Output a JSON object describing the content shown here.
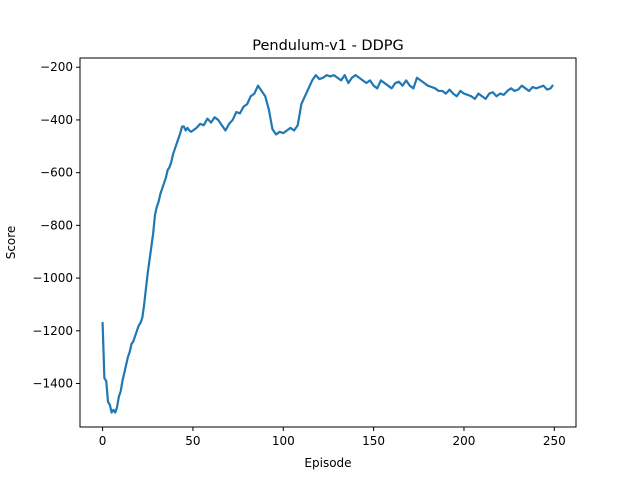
{
  "chart_data": {
    "type": "line",
    "title": "Pendulum-v1 - DDPG",
    "xlabel": "Episode",
    "ylabel": "Score",
    "xlim": [
      -12.5,
      262
    ],
    "ylim": [
      -1565,
      -165
    ],
    "xticks": [
      0,
      50,
      100,
      150,
      200,
      250
    ],
    "yticks": [
      -200,
      -400,
      -600,
      -800,
      -1000,
      -1200,
      -1400
    ],
    "xtick_labels": [
      "0",
      "50",
      "100",
      "150",
      "200",
      "250"
    ],
    "ytick_labels": [
      "−200",
      "−400",
      "−600",
      "−800",
      "−1000",
      "−1200",
      "−1400"
    ],
    "grid": false,
    "legend": "none",
    "series_color": "#1f77b4",
    "series": [
      {
        "x": [
          0,
          1,
          2,
          3,
          4,
          5,
          6,
          7,
          8,
          9,
          10,
          11,
          12,
          13,
          14,
          15,
          16,
          17,
          18,
          19,
          20,
          21,
          22,
          23,
          24,
          25,
          26,
          27,
          28,
          29,
          30,
          31,
          32,
          33,
          34,
          35,
          36,
          37,
          38,
          39,
          40,
          41,
          42,
          43,
          44,
          45,
          46,
          47,
          48,
          49,
          50,
          52,
          54,
          56,
          58,
          60,
          62,
          64,
          66,
          68,
          70,
          72,
          74,
          76,
          78,
          80,
          82,
          84,
          86,
          88,
          90,
          92,
          94,
          96,
          98,
          100,
          102,
          104,
          106,
          108,
          110,
          112,
          114,
          116,
          118,
          120,
          122,
          124,
          126,
          128,
          130,
          132,
          134,
          136,
          138,
          140,
          142,
          144,
          146,
          148,
          150,
          152,
          154,
          156,
          158,
          160,
          162,
          164,
          166,
          168,
          170,
          172,
          174,
          176,
          178,
          180,
          182,
          184,
          186,
          188,
          190,
          192,
          194,
          196,
          198,
          200,
          202,
          204,
          206,
          208,
          210,
          212,
          214,
          216,
          218,
          220,
          222,
          224,
          226,
          228,
          230,
          232,
          234,
          236,
          238,
          240,
          242,
          244,
          246,
          248,
          249
        ],
        "y": [
          -1170,
          -1380,
          -1390,
          -1470,
          -1480,
          -1510,
          -1500,
          -1510,
          -1490,
          -1450,
          -1430,
          -1390,
          -1360,
          -1330,
          -1300,
          -1280,
          -1250,
          -1240,
          -1220,
          -1200,
          -1180,
          -1170,
          -1150,
          -1100,
          -1040,
          -980,
          -930,
          -880,
          -830,
          -760,
          -730,
          -710,
          -680,
          -660,
          -640,
          -620,
          -590,
          -580,
          -560,
          -530,
          -510,
          -490,
          -470,
          -450,
          -425,
          -425,
          -440,
          -430,
          -440,
          -445,
          -440,
          -430,
          -415,
          -420,
          -395,
          -410,
          -390,
          -400,
          -420,
          -440,
          -415,
          -400,
          -370,
          -375,
          -350,
          -340,
          -310,
          -300,
          -270,
          -290,
          -310,
          -360,
          -435,
          -455,
          -445,
          -450,
          -440,
          -430,
          -440,
          -420,
          -340,
          -310,
          -280,
          -250,
          -230,
          -245,
          -240,
          -230,
          -235,
          -230,
          -240,
          -250,
          -230,
          -260,
          -240,
          -230,
          -240,
          -250,
          -260,
          -250,
          -270,
          -280,
          -250,
          -260,
          -270,
          -280,
          -260,
          -255,
          -270,
          -250,
          -270,
          -280,
          -240,
          -250,
          -260,
          -270,
          -275,
          -280,
          -290,
          -290,
          -300,
          -285,
          -300,
          -310,
          -290,
          -300,
          -305,
          -310,
          -320,
          -300,
          -310,
          -320,
          -300,
          -295,
          -310,
          -300,
          -305,
          -290,
          -280,
          -290,
          -285,
          -270,
          -280,
          -290,
          -275,
          -280,
          -275,
          -270,
          -285,
          -280,
          -270
        ]
      }
    ]
  }
}
